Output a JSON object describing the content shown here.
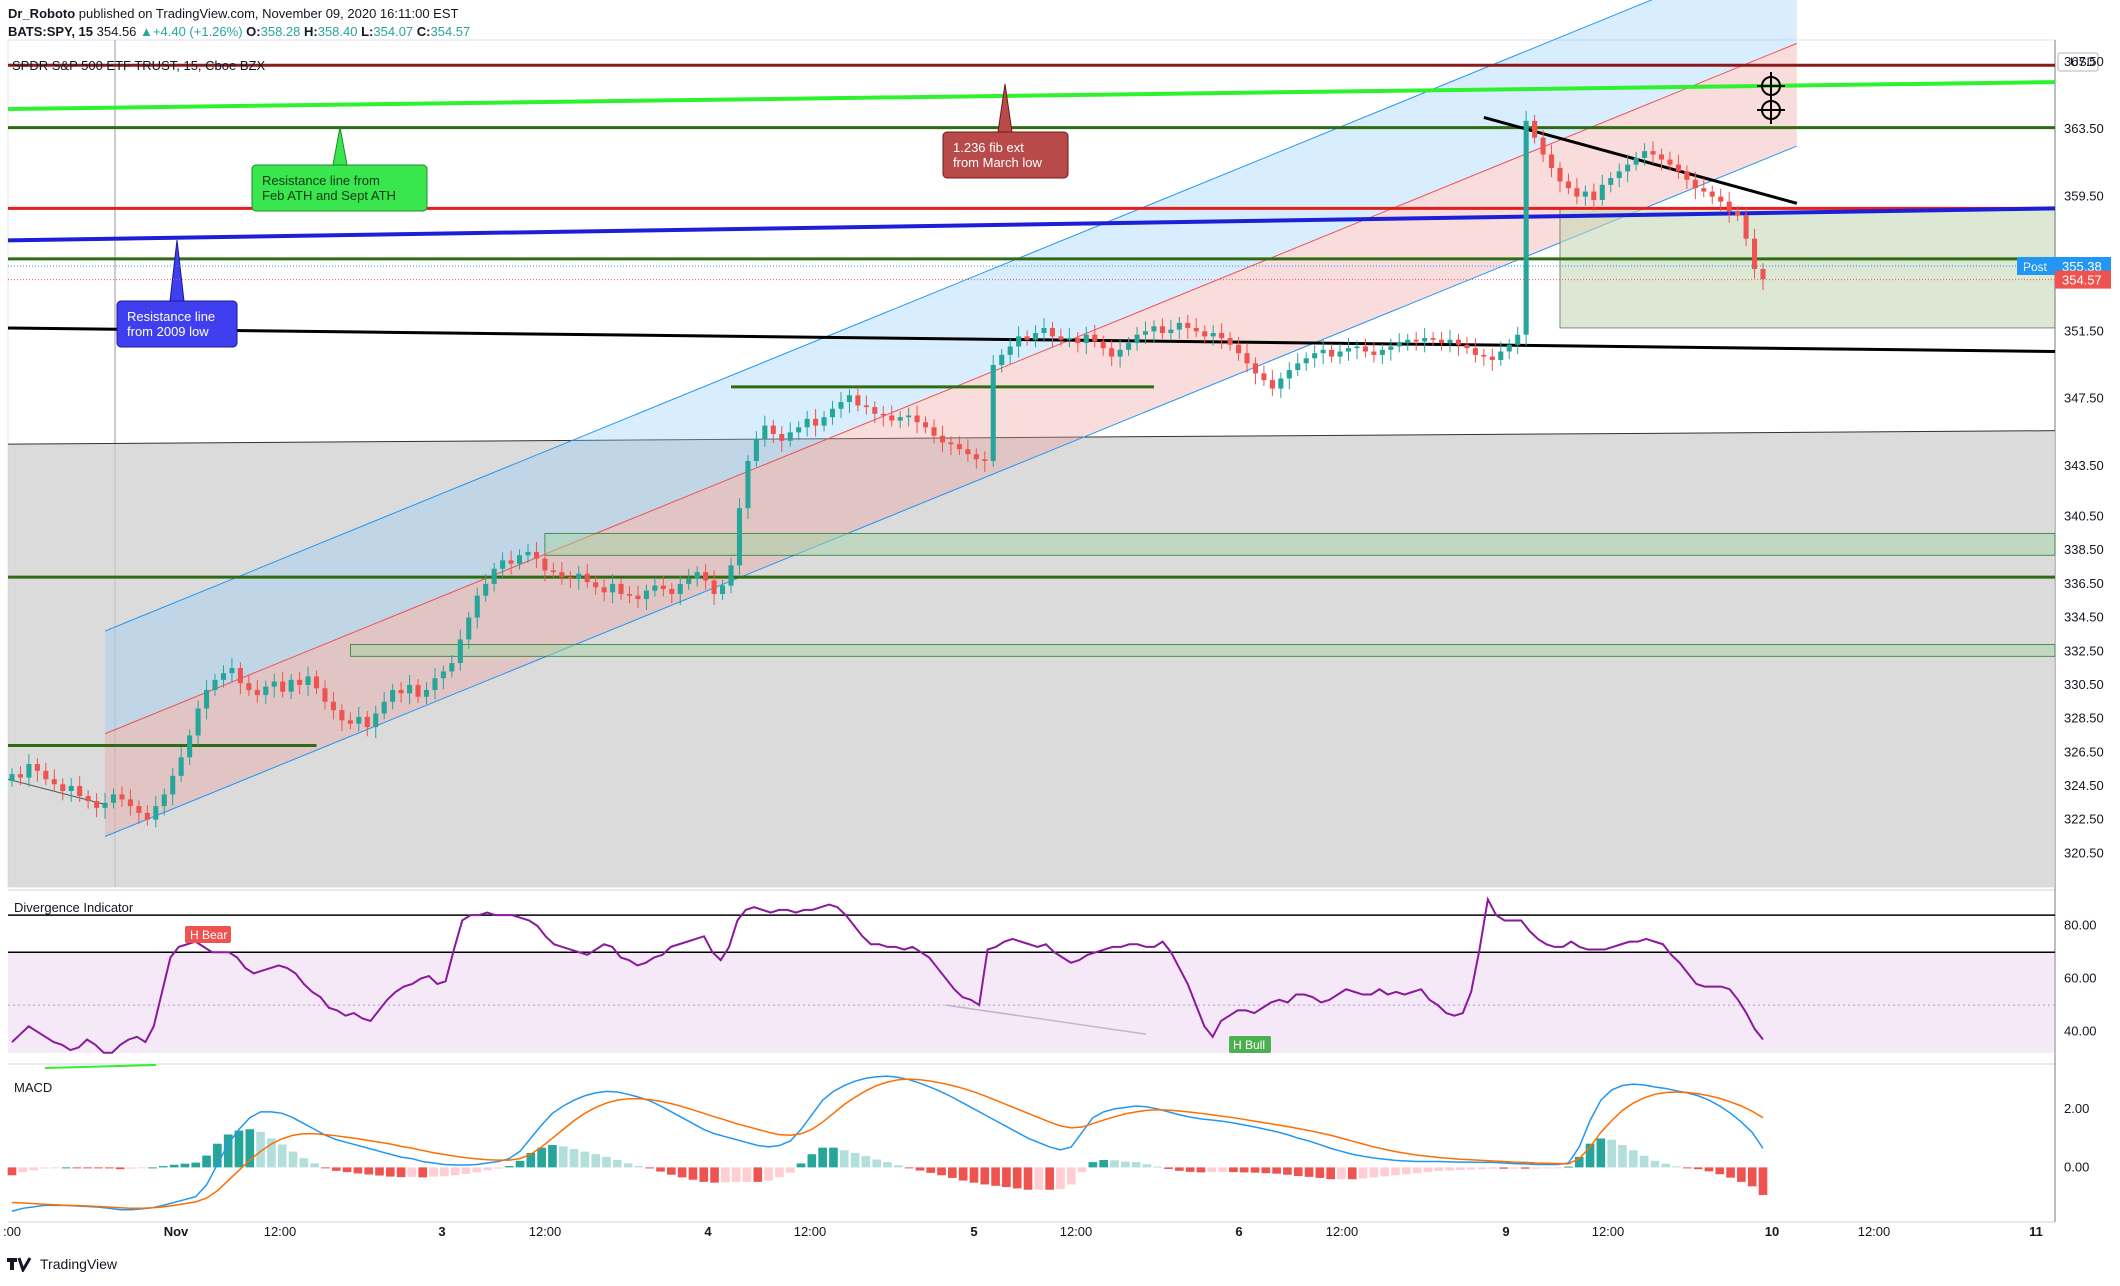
{
  "header": {
    "author": "Dr_Roboto",
    "published_text": "published on TradingView.com, November 09, 2020 16:11:00 EST",
    "symbol_line": {
      "symbol": "BATS:SPY, 15",
      "last": "354.56",
      "change": "+4.40 (+1.26%)",
      "o_label": "O:",
      "o": "358.28",
      "h_label": "H:",
      "h": "358.40",
      "l_label": "L:",
      "l": "354.07",
      "c_label": "C:",
      "c": "354.57"
    }
  },
  "footer": {
    "brand": "TradingView"
  },
  "colors": {
    "up": "#26a69a",
    "down": "#ef5350",
    "blue_line": "#1c1fd6",
    "green_line": "#2ef22e",
    "dark_red_line": "#8b1a1a",
    "red_line": "#e31e1e",
    "olive_line": "#2e6b13",
    "purple": "#8a1a9c",
    "macd_line": "#2196f3",
    "signal_line": "#ff6d00"
  },
  "chart_data": [
    {
      "type": "candlestick",
      "title": "SPDR S&P 500 ETF TRUST, 15, Cboe BZX",
      "currency": "USD",
      "y_ticks": [
        "320.50",
        "322.50",
        "324.50",
        "326.50",
        "328.50",
        "330.50",
        "332.50",
        "334.50",
        "336.50",
        "338.50",
        "340.50",
        "343.50",
        "347.50",
        "351.50",
        "355.50",
        "359.50",
        "363.50",
        "367.50"
      ],
      "ylim": [
        318.5,
        368.8
      ],
      "x_ticks": [
        ":00",
        "Nov",
        "12:00",
        "3",
        "12:00",
        "4",
        "12:00",
        "5",
        "12:00",
        "6",
        "12:00",
        "9",
        "12:00",
        "10",
        "12:00",
        "11"
      ],
      "price_labels": {
        "post_label": "Post",
        "post": "355.38",
        "last": "354.57"
      },
      "closes": [
        325.2,
        325.0,
        325.8,
        325.4,
        324.9,
        324.6,
        324.2,
        324.5,
        323.9,
        323.6,
        323.2,
        323.5,
        324.0,
        323.7,
        323.3,
        322.9,
        322.5,
        323.3,
        324.0,
        325.1,
        326.2,
        327.5,
        329.1,
        330.2,
        330.8,
        331.2,
        331.5,
        330.6,
        330.2,
        329.9,
        330.4,
        330.7,
        330.1,
        330.8,
        330.5,
        331.0,
        330.3,
        329.5,
        329.0,
        328.4,
        328.2,
        328.6,
        328.0,
        328.8,
        329.5,
        330.2,
        330.0,
        330.5,
        329.8,
        330.2,
        330.9,
        331.3,
        331.8,
        333.2,
        334.5,
        335.8,
        336.5,
        337.4,
        337.9,
        337.7,
        338.2,
        338.4,
        338.0,
        337.3,
        337.2,
        336.9,
        336.8,
        337.1,
        336.6,
        336.3,
        336.0,
        336.5,
        335.9,
        335.8,
        335.6,
        336.1,
        336.4,
        336.2,
        335.9,
        336.5,
        336.8,
        337.2,
        336.7,
        335.9,
        336.4,
        337.6,
        341.0,
        343.8,
        345.1,
        345.9,
        345.4,
        345.0,
        345.5,
        345.8,
        346.3,
        345.9,
        346.4,
        346.9,
        347.3,
        347.7,
        347.1,
        347.0,
        346.6,
        346.5,
        346.2,
        346.4,
        346.5,
        346.1,
        345.8,
        345.3,
        344.9,
        344.8,
        344.5,
        344.2,
        343.9,
        343.8,
        349.5,
        350.1,
        350.6,
        351.2,
        351.0,
        351.4,
        351.7,
        351.2,
        351.0,
        351.1,
        350.8,
        351.3,
        350.9,
        350.5,
        350.0,
        350.4,
        350.8,
        351.3,
        351.5,
        351.8,
        351.4,
        351.6,
        352.0,
        351.7,
        351.5,
        351.2,
        351.4,
        351.1,
        350.7,
        350.2,
        349.6,
        349.0,
        348.6,
        348.1,
        348.7,
        349.2,
        349.6,
        349.9,
        350.2,
        350.4,
        350.0,
        350.3,
        350.5,
        350.6,
        350.3,
        350.1,
        350.4,
        350.6,
        350.8,
        351.0,
        350.9,
        351.1,
        351.0,
        350.8,
        351.0,
        350.7,
        350.5,
        350.1,
        350.0,
        349.8,
        350.3,
        350.7,
        351.3,
        364.0,
        363.0,
        362.0,
        361.2,
        360.4,
        360.0,
        359.5,
        359.8,
        359.3,
        360.2,
        360.6,
        361.0,
        361.4,
        361.8,
        362.2,
        362.0,
        361.7,
        361.4,
        361.0,
        360.5,
        360.0,
        359.8,
        359.5,
        359.2,
        358.6,
        358.4,
        357.0,
        355.2,
        354.6
      ],
      "overlays": {
        "horizontal_levels": [
          367.3,
          363.6,
          358.8,
          355.8,
          336.9,
          326.9,
          348.2
        ],
        "labels": [
          {
            "text_lines": [
              "Resistance line from",
              "Feb ATH and Sept ATH"
            ]
          },
          {
            "text_lines": [
              "1.236 fib ext",
              "from March low"
            ]
          },
          {
            "text_lines": [
              "Resistance line",
              "from 2009 low"
            ]
          }
        ]
      }
    },
    {
      "type": "line",
      "title": "Divergence Indicator",
      "y_ticks": [
        "40.00",
        "60.00",
        "80.00"
      ],
      "ylim": [
        30,
        92
      ],
      "levels": [
        84,
        70,
        50
      ],
      "markers": [
        {
          "label": "H Bear"
        },
        {
          "label": "H Bull"
        }
      ],
      "values": [
        36,
        39,
        42,
        40,
        38,
        36,
        35,
        33,
        34,
        37,
        35,
        32,
        32,
        35,
        37,
        38,
        36,
        42,
        55,
        68,
        72,
        73,
        74,
        72,
        70,
        70,
        70,
        68,
        64,
        62,
        63,
        64,
        65,
        64,
        62,
        58,
        55,
        53,
        49,
        48,
        46,
        47,
        45,
        44,
        48,
        52,
        55,
        57,
        58,
        60,
        61,
        58,
        59,
        71,
        82,
        84,
        84,
        85,
        84,
        84,
        84,
        83,
        82,
        80,
        76,
        73,
        72,
        71,
        70,
        69,
        71,
        73,
        72,
        68,
        67,
        65,
        66,
        68,
        69,
        72,
        73,
        74,
        75,
        76,
        70,
        67,
        72,
        82,
        86,
        87,
        86,
        85,
        86,
        86,
        85,
        86,
        86,
        87,
        88,
        87,
        84,
        80,
        76,
        73,
        73,
        72,
        72,
        71,
        72,
        70,
        68,
        64,
        60,
        56,
        53,
        52,
        50,
        71,
        72,
        74,
        75,
        74,
        73,
        72,
        73,
        70,
        68,
        66,
        67,
        69,
        70,
        71,
        72,
        72,
        73,
        73,
        72,
        72,
        74,
        70,
        64,
        58,
        50,
        42,
        38,
        44,
        46,
        48,
        48,
        47,
        49,
        51,
        52,
        51,
        54,
        54,
        53,
        51,
        52,
        54,
        56,
        55,
        54,
        54,
        56,
        54,
        55,
        54,
        55,
        56,
        52,
        50,
        47,
        46,
        47,
        55,
        71,
        90,
        84,
        82,
        82,
        82,
        78,
        75,
        73,
        72,
        72,
        74,
        72,
        71,
        71,
        71,
        72,
        73,
        74,
        74,
        75,
        74,
        73,
        69,
        66,
        62,
        58,
        57,
        57,
        57,
        56,
        52,
        47,
        41,
        37
      ]
    },
    {
      "type": "bar",
      "title": "MACD",
      "y_ticks": [
        "0.00",
        "2.00"
      ],
      "ylim": [
        -1.8,
        3.4
      ],
      "macd": [
        -1.5,
        -1.4,
        -1.35,
        -1.3,
        -1.3,
        -1.3,
        -1.32,
        -1.34,
        -1.36,
        -1.4,
        -1.45,
        -1.45,
        -1.42,
        -1.38,
        -1.3,
        -1.2,
        -1.1,
        -1.0,
        -0.6,
        0.1,
        0.8,
        1.3,
        1.7,
        1.9,
        1.9,
        1.85,
        1.7,
        1.5,
        1.3,
        1.1,
        0.95,
        0.85,
        0.75,
        0.65,
        0.55,
        0.45,
        0.35,
        0.3,
        0.2,
        0.15,
        0.1,
        0.08,
        0.08,
        0.1,
        0.15,
        0.2,
        0.3,
        0.55,
        1.0,
        1.45,
        1.85,
        2.1,
        2.3,
        2.45,
        2.55,
        2.6,
        2.58,
        2.5,
        2.4,
        2.28,
        2.1,
        1.9,
        1.7,
        1.5,
        1.3,
        1.15,
        1.05,
        0.95,
        0.85,
        0.75,
        0.7,
        0.75,
        0.9,
        1.3,
        1.8,
        2.3,
        2.6,
        2.8,
        2.95,
        3.05,
        3.1,
        3.12,
        3.08,
        3.0,
        2.88,
        2.74,
        2.58,
        2.4,
        2.2,
        2.0,
        1.8,
        1.6,
        1.4,
        1.2,
        1.0,
        0.85,
        0.7,
        0.6,
        0.7,
        1.2,
        1.7,
        1.9,
        2.0,
        2.05,
        2.1,
        2.07,
        2.0,
        1.9,
        1.8,
        1.72,
        1.66,
        1.62,
        1.58,
        1.52,
        1.45,
        1.38,
        1.3,
        1.22,
        1.12,
        1.0,
        0.9,
        0.78,
        0.65,
        0.55,
        0.45,
        0.38,
        0.32,
        0.28,
        0.24,
        0.22,
        0.2,
        0.2,
        0.2,
        0.19,
        0.18,
        0.18,
        0.17,
        0.17,
        0.15,
        0.13,
        0.12,
        0.1,
        0.1,
        0.1,
        0.15,
        0.7,
        1.6,
        2.3,
        2.65,
        2.8,
        2.85,
        2.82,
        2.75,
        2.7,
        2.62,
        2.55,
        2.45,
        2.3,
        2.1,
        1.85,
        1.55,
        1.2,
        0.65
      ],
      "signal": [
        -1.2,
        -1.22,
        -1.24,
        -1.26,
        -1.28,
        -1.3,
        -1.31,
        -1.32,
        -1.34,
        -1.36,
        -1.38,
        -1.4,
        -1.4,
        -1.38,
        -1.35,
        -1.3,
        -1.24,
        -1.18,
        -1.05,
        -0.8,
        -0.45,
        -0.1,
        0.25,
        0.55,
        0.8,
        0.98,
        1.1,
        1.15,
        1.15,
        1.12,
        1.08,
        1.03,
        0.98,
        0.92,
        0.86,
        0.8,
        0.72,
        0.66,
        0.58,
        0.5,
        0.44,
        0.38,
        0.33,
        0.29,
        0.26,
        0.25,
        0.25,
        0.3,
        0.45,
        0.7,
        1.0,
        1.3,
        1.6,
        1.85,
        2.05,
        2.2,
        2.3,
        2.35,
        2.35,
        2.32,
        2.26,
        2.18,
        2.08,
        1.97,
        1.85,
        1.73,
        1.62,
        1.5,
        1.4,
        1.3,
        1.2,
        1.12,
        1.1,
        1.15,
        1.3,
        1.55,
        1.85,
        2.15,
        2.4,
        2.62,
        2.8,
        2.92,
        3.0,
        3.02,
        3.0,
        2.95,
        2.88,
        2.8,
        2.7,
        2.58,
        2.45,
        2.3,
        2.15,
        2.0,
        1.85,
        1.7,
        1.55,
        1.42,
        1.35,
        1.38,
        1.5,
        1.62,
        1.73,
        1.83,
        1.9,
        1.95,
        1.97,
        1.96,
        1.93,
        1.89,
        1.85,
        1.8,
        1.75,
        1.7,
        1.64,
        1.58,
        1.52,
        1.46,
        1.4,
        1.33,
        1.26,
        1.18,
        1.1,
        1.0,
        0.9,
        0.8,
        0.7,
        0.62,
        0.54,
        0.48,
        0.42,
        0.38,
        0.34,
        0.31,
        0.28,
        0.26,
        0.24,
        0.22,
        0.2,
        0.18,
        0.17,
        0.15,
        0.14,
        0.13,
        0.12,
        0.3,
        0.7,
        1.2,
        1.6,
        1.95,
        2.2,
        2.38,
        2.5,
        2.56,
        2.58,
        2.56,
        2.52,
        2.45,
        2.36,
        2.24,
        2.1,
        1.92,
        1.7
      ]
    }
  ]
}
